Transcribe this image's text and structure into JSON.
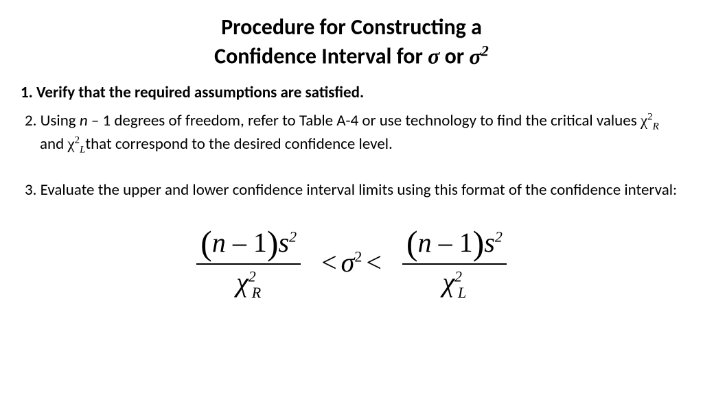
{
  "title_line1": "Procedure for Constructing a",
  "title_line2_pre": "Confidence Interval for ",
  "title_line2_mid": "or ",
  "sigma": "σ",
  "sup2": "2",
  "step1": "1.  Verify that the required assumptions are satisfied.",
  "step2_a": "2. Using ",
  "step2_n": "n",
  "step2_b": " – 1 degrees of freedom, refer to Table A-4 or use technology to find the critical values ",
  "chi": "χ",
  "R": "R",
  "L": "L",
  "step2_c": " and ",
  "step2_d": "that correspond to the desired confidence level.",
  "step3": "3. Evaluate the upper and lower confidence interval limits using this format of the confidence interval:",
  "formula": {
    "n": "n",
    "minus1": " – 1",
    "s": "s",
    "lt": "<",
    "sigma": "σ"
  }
}
